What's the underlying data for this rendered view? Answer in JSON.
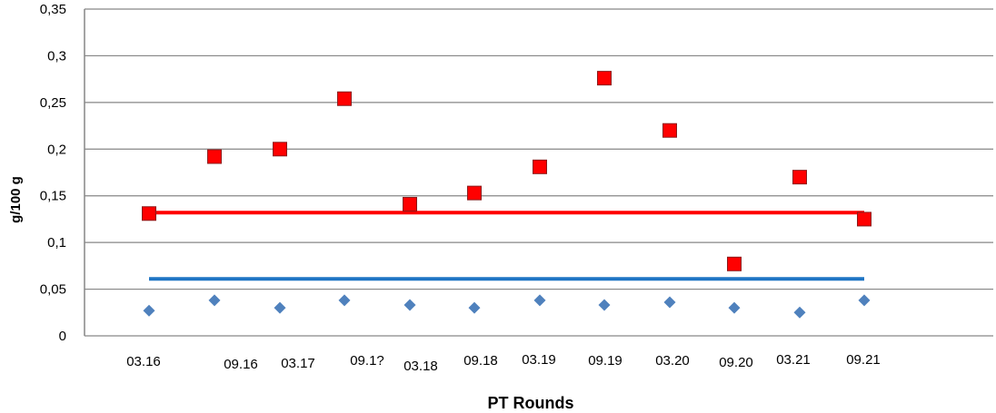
{
  "chart_data": {
    "type": "scatter",
    "title": "",
    "xlabel": "PT Rounds",
    "ylabel": "g/100 g",
    "ylim": [
      0,
      0.35
    ],
    "yticks": [
      0,
      0.05,
      0.1,
      0.15,
      0.2,
      0.25,
      0.3,
      0.35
    ],
    "ytick_labels": [
      "0",
      "0,05",
      "0,1",
      "0,15",
      "0,2",
      "0,25",
      "0,3",
      "0,35"
    ],
    "grid": "horizontal",
    "legend": "none",
    "categories": [
      "03.16",
      "09.16",
      "03.17",
      "09.17",
      "03.18",
      "09.18",
      "03.19",
      "09.19",
      "03.20",
      "09.20",
      "03.21",
      "09.21"
    ],
    "category_labels": [
      "03.16",
      "09.16",
      "03.17",
      "09.1?",
      "03.18",
      "09.18",
      "03.19",
      "09.19",
      "03.20",
      "09.20",
      "03.21",
      "09.21"
    ],
    "series": [
      {
        "marker": "square",
        "color": "#ff0000",
        "values": [
          0.131,
          0.192,
          0.2,
          0.254,
          0.141,
          0.153,
          0.181,
          0.276,
          0.22,
          0.077,
          0.17,
          0.125
        ]
      },
      {
        "marker": "diamond",
        "color": "#4f81bd",
        "values": [
          0.027,
          0.038,
          0.03,
          0.038,
          0.033,
          0.03,
          0.038,
          0.033,
          0.036,
          0.03,
          0.025,
          0.038
        ]
      }
    ],
    "lines": [
      {
        "color": "#ff0000",
        "value": 0.132
      },
      {
        "color": "#1f75c4",
        "value": 0.061
      }
    ]
  }
}
